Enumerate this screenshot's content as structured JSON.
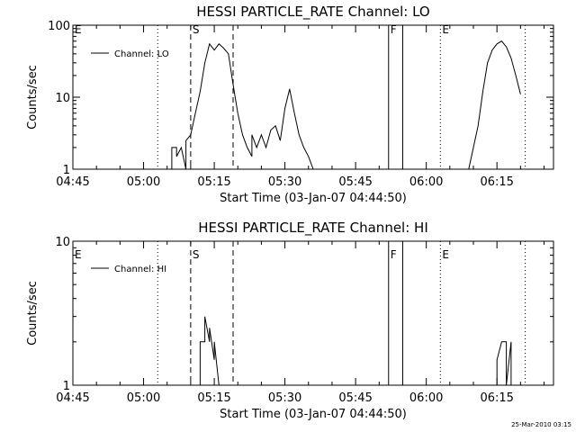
{
  "footer": {
    "timestamp": "25-Mar-2010 03:15"
  },
  "chart_data": [
    {
      "type": "line",
      "title": "HESSI PARTICLE_RATE Channel: LO",
      "xlabel": "Start Time (03-Jan-07 04:44:50)",
      "ylabel": "Counts/sec",
      "y_scale": "log",
      "xlim": [
        "04:45",
        "06:27"
      ],
      "ylim": [
        1,
        100
      ],
      "x_ticks": [
        "04:45",
        "05:00",
        "05:15",
        "05:30",
        "05:45",
        "06:00",
        "06:15"
      ],
      "y_ticks": [
        "1",
        "10",
        "100"
      ],
      "legend": {
        "position": "top-left",
        "entries": [
          "Channel: LO"
        ]
      },
      "series": [
        {
          "name": "Channel: LO",
          "color": "#000000",
          "segments": [
            [
              [
                "05:06",
                1
              ],
              [
                "05:06",
                2
              ],
              [
                "05:07",
                2
              ],
              [
                "05:07",
                1.5
              ],
              [
                "05:08",
                2
              ],
              [
                "05:09",
                1
              ],
              [
                "05:09",
                2.5
              ],
              [
                "05:10",
                3
              ],
              [
                "05:11",
                6
              ],
              [
                "05:12",
                12
              ],
              [
                "05:13",
                30
              ],
              [
                "05:14",
                55
              ],
              [
                "05:15",
                45
              ],
              [
                "05:16",
                55
              ],
              [
                "05:17",
                48
              ],
              [
                "05:18",
                40
              ],
              [
                "05:19",
                15
              ],
              [
                "05:20",
                6
              ],
              [
                "05:21",
                3
              ],
              [
                "05:22",
                2
              ],
              [
                "05:23",
                1.5
              ],
              [
                "05:23",
                3
              ],
              [
                "05:24",
                2
              ],
              [
                "05:25",
                3
              ],
              [
                "05:26",
                2
              ],
              [
                "05:27",
                3.5
              ],
              [
                "05:28",
                4
              ],
              [
                "05:29",
                2.5
              ],
              [
                "05:30",
                7
              ],
              [
                "05:31",
                13
              ],
              [
                "05:32",
                6
              ],
              [
                "05:33",
                3
              ],
              [
                "05:34",
                2
              ],
              [
                "05:35",
                1.5
              ],
              [
                "05:36",
                1
              ]
            ],
            [
              [
                "06:09",
                1
              ],
              [
                "06:10",
                2
              ],
              [
                "06:11",
                4
              ],
              [
                "06:12",
                12
              ],
              [
                "06:13",
                30
              ],
              [
                "06:14",
                45
              ],
              [
                "06:15",
                55
              ],
              [
                "06:16",
                60
              ],
              [
                "06:17",
                50
              ],
              [
                "06:18",
                35
              ],
              [
                "06:19",
                20
              ],
              [
                "06:20",
                11
              ]
            ]
          ]
        }
      ],
      "markers": [
        {
          "time": "05:03",
          "style": "dotted",
          "label": ""
        },
        {
          "time": "05:10",
          "style": "dashed",
          "label": "S"
        },
        {
          "time": "05:19",
          "style": "dashed",
          "label": ""
        },
        {
          "time": "05:52",
          "style": "solid",
          "label": "F"
        },
        {
          "time": "05:55",
          "style": "solid",
          "label": ""
        },
        {
          "time": "06:03",
          "style": "dotted",
          "label": "E"
        },
        {
          "time": "06:21",
          "style": "dotted",
          "label": ""
        },
        {
          "time": "04:45",
          "style": "none",
          "label": "E"
        }
      ]
    },
    {
      "type": "line",
      "title": "HESSI PARTICLE_RATE Channel: HI",
      "xlabel": "Start Time (03-Jan-07 04:44:50)",
      "ylabel": "Counts/sec",
      "y_scale": "log",
      "xlim": [
        "04:45",
        "06:27"
      ],
      "ylim": [
        1,
        10
      ],
      "x_ticks": [
        "04:45",
        "05:00",
        "05:15",
        "05:30",
        "05:45",
        "06:00",
        "06:15"
      ],
      "y_ticks": [
        "1",
        "10"
      ],
      "legend": {
        "position": "top-left",
        "entries": [
          "Channel: HI"
        ]
      },
      "series": [
        {
          "name": "Channel: HI",
          "color": "#000000",
          "segments": [
            [
              [
                "05:12",
                1
              ],
              [
                "05:12",
                2
              ],
              [
                "05:13",
                2
              ],
              [
                "05:13",
                3
              ],
              [
                "05:14",
                2
              ],
              [
                "05:14",
                2.5
              ],
              [
                "05:15",
                1.5
              ],
              [
                "05:15",
                2
              ],
              [
                "05:16",
                1
              ]
            ],
            [
              [
                "06:15",
                1
              ],
              [
                "06:15",
                1.5
              ],
              [
                "06:16",
                2
              ],
              [
                "06:17",
                2
              ],
              [
                "06:17",
                1
              ],
              [
                "06:18",
                2
              ],
              [
                "06:18",
                1
              ]
            ]
          ]
        }
      ],
      "markers": [
        {
          "time": "05:03",
          "style": "dotted",
          "label": ""
        },
        {
          "time": "05:10",
          "style": "dashed",
          "label": "S"
        },
        {
          "time": "05:19",
          "style": "dashed",
          "label": ""
        },
        {
          "time": "05:52",
          "style": "solid",
          "label": "F"
        },
        {
          "time": "05:55",
          "style": "solid",
          "label": ""
        },
        {
          "time": "06:03",
          "style": "dotted",
          "label": "E"
        },
        {
          "time": "06:21",
          "style": "dotted",
          "label": ""
        },
        {
          "time": "04:45",
          "style": "none",
          "label": "E"
        }
      ]
    }
  ]
}
